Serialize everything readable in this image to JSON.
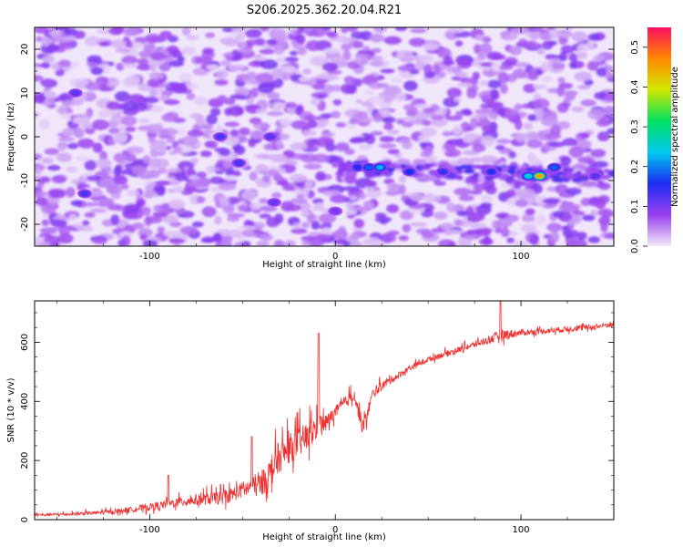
{
  "page": {
    "title": "S206.2025.362.20.04.R21"
  },
  "chart_data": [
    {
      "type": "heatmap",
      "xlabel": "Height of straight line (km)",
      "ylabel": "Frequency (Hz)",
      "xlim": [
        -162,
        150
      ],
      "ylim": [
        -25,
        25
      ],
      "x_ticks": [
        -100,
        0,
        100
      ],
      "y_ticks": [
        -20,
        -10,
        0,
        10,
        20
      ],
      "colorbar": {
        "label": "Normalized spectral amplitude",
        "range": [
          0,
          0.55
        ],
        "ticks": [
          0.0,
          0.1,
          0.2,
          0.3,
          0.4,
          0.5
        ],
        "tick_labels": [
          "0.0",
          "0.1",
          "0.2",
          "0.3",
          "0.4",
          "0.5"
        ],
        "colormap": [
          "#f2eaf8",
          "#9a40f0",
          "#1c2cf0",
          "#00c8f0",
          "#00e060",
          "#d0e800",
          "#ff8800",
          "#ff1060"
        ]
      },
      "background_amplitude": 0.05,
      "features": [
        {
          "x": 12,
          "y": -7,
          "amplitude": 0.15
        },
        {
          "x": 18,
          "y": -7,
          "amplitude": 0.18
        },
        {
          "x": 24,
          "y": -7,
          "amplitude": 0.22
        },
        {
          "x": 40,
          "y": -8,
          "amplitude": 0.16
        },
        {
          "x": 58,
          "y": -8,
          "amplitude": 0.14
        },
        {
          "x": 84,
          "y": -8,
          "amplitude": 0.15
        },
        {
          "x": 104,
          "y": -9,
          "amplitude": 0.25
        },
        {
          "x": 110,
          "y": -9,
          "amplitude": 0.45
        },
        {
          "x": 118,
          "y": -7,
          "amplitude": 0.18
        },
        {
          "x": 140,
          "y": -9,
          "amplitude": 0.12
        },
        {
          "x": -62,
          "y": 0,
          "amplitude": 0.13
        },
        {
          "x": -52,
          "y": -6,
          "amplitude": 0.13
        },
        {
          "x": -35,
          "y": 0,
          "amplitude": 0.12
        },
        {
          "x": -135,
          "y": -13,
          "amplitude": 0.13
        },
        {
          "x": -140,
          "y": 10,
          "amplitude": 0.12
        },
        {
          "x": -33,
          "y": -15,
          "amplitude": 0.11
        },
        {
          "x": 0,
          "y": -17,
          "amplitude": 0.1
        }
      ],
      "ridge": {
        "x": [
          0,
          150
        ],
        "y": [
          -7,
          -9
        ],
        "amplitude": 0.1
      }
    },
    {
      "type": "line",
      "xlabel": "Height of straight line (km)",
      "ylabel": "SNR (10 * v/v)",
      "xlim": [
        -162,
        150
      ],
      "ylim": [
        0,
        740
      ],
      "x_ticks": [
        -100,
        0,
        100
      ],
      "y_ticks": [
        0,
        200,
        400,
        600
      ],
      "series": [
        {
          "color": "#f03030",
          "x": [
            -162,
            -140,
            -120,
            -100,
            -80,
            -60,
            -50,
            -40,
            -35,
            -30,
            -25,
            -20,
            -15,
            -10,
            -5,
            0,
            5,
            10,
            15,
            20,
            25,
            30,
            40,
            50,
            60,
            70,
            80,
            90,
            100,
            110,
            120,
            130,
            140,
            150
          ],
          "values": [
            15,
            18,
            25,
            40,
            60,
            70,
            95,
            110,
            150,
            200,
            230,
            250,
            270,
            300,
            320,
            360,
            390,
            420,
            300,
            420,
            450,
            470,
            510,
            540,
            560,
            580,
            600,
            620,
            630,
            635,
            640,
            645,
            650,
            660
          ],
          "noise": [
            10,
            10,
            15,
            25,
            35,
            45,
            55,
            80,
            100,
            100,
            100,
            100,
            100,
            100,
            60,
            40,
            40,
            40,
            60,
            35,
            30,
            25,
            20,
            20,
            20,
            20,
            25,
            40,
            20,
            20,
            20,
            20,
            20,
            20
          ]
        }
      ],
      "spikes": [
        {
          "x": -9,
          "y": 630
        },
        {
          "x": 89,
          "y": 740
        },
        {
          "x": -90,
          "y": 150
        },
        {
          "x": -45,
          "y": 280
        }
      ]
    }
  ]
}
